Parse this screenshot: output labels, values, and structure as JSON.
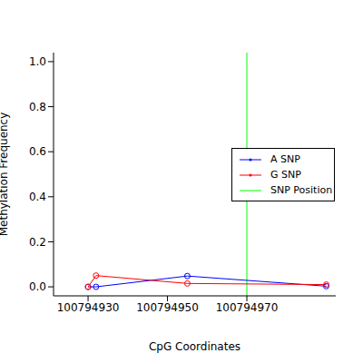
{
  "chart_data": {
    "type": "line",
    "x_label": "CpG Coordinates",
    "y_label": "Methylation Frequency",
    "x": [
      100794930,
      100794932,
      100794955,
      100794990
    ],
    "series": [
      {
        "name": "A SNP",
        "color": "#0000ff",
        "values": [
          0.0,
          0.0,
          0.048,
          0.003
        ],
        "marker": "circle"
      },
      {
        "name": "G SNP",
        "color": "#ff0000",
        "values": [
          0.0,
          0.05,
          0.015,
          0.01
        ],
        "marker": "circle"
      }
    ],
    "reference_lines": [
      {
        "name": "SNP Position",
        "x": 100794970,
        "color": "#00ff00"
      }
    ],
    "xlim": [
      100794921.3,
      100794992.4
    ],
    "xticks": [
      100794930,
      100794950,
      100794970
    ],
    "ylim": [
      -0.04,
      1.04
    ],
    "yticks": [
      {
        "value": 0,
        "label": "0.0"
      },
      {
        "value": 0.2,
        "label": "0.2"
      },
      {
        "value": 0.4,
        "label": "0.4"
      },
      {
        "value": 0.6,
        "label": "0.6"
      },
      {
        "value": 0.8,
        "label": "0.8"
      },
      {
        "value": 1.0,
        "label": "1.0"
      }
    ],
    "legend": "right"
  }
}
